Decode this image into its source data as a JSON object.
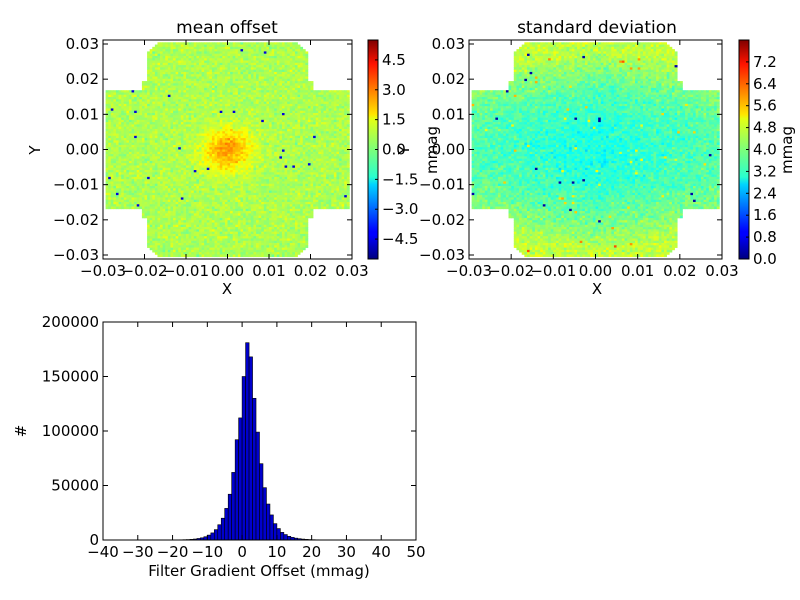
{
  "chart_data": [
    {
      "type": "heatmap",
      "title": "mean offset",
      "xlabel": "X",
      "ylabel": "Y",
      "xlim": [
        -0.031,
        0.031
      ],
      "ylim": [
        -0.031,
        0.031
      ],
      "x_ticks": [
        "−0.03",
        "−0.02",
        "−0.01",
        "0.00",
        "0.01",
        "0.02",
        "0.03"
      ],
      "y_ticks": [
        "0.03",
        "0.02",
        "0.01",
        "0.00",
        "−0.01",
        "−0.02",
        "−0.03"
      ],
      "colorbar": {
        "label": "mmag",
        "range": [
          -5.5,
          5.5
        ],
        "ticks": [
          "4.5",
          "3.0",
          "1.5",
          "0.0",
          "−1.5",
          "−3.0",
          "−4.5"
        ],
        "tick_values": [
          4.5,
          3.0,
          1.5,
          0.0,
          -1.5,
          -3.0,
          -4.5
        ],
        "colormap": "jet"
      },
      "field_base_value": 0.5,
      "center_peak_value": 2.5,
      "grid": false
    },
    {
      "type": "heatmap",
      "title": "standard deviation",
      "xlabel": "X",
      "ylabel": "Y",
      "xlim": [
        -0.031,
        0.031
      ],
      "ylim": [
        -0.031,
        0.031
      ],
      "x_ticks": [
        "−0.03",
        "−0.02",
        "−0.01",
        "0.00",
        "0.01",
        "0.02",
        "0.03"
      ],
      "y_ticks": [
        "0.03",
        "0.02",
        "0.01",
        "0.00",
        "−0.01",
        "−0.02",
        "−0.03"
      ],
      "colorbar": {
        "label": "mmag",
        "range": [
          0,
          8.0
        ],
        "ticks": [
          "7.2",
          "6.4",
          "5.6",
          "4.8",
          "4.0",
          "3.2",
          "2.4",
          "1.6",
          "0.8",
          "0.0"
        ],
        "tick_values": [
          7.2,
          6.4,
          5.6,
          4.8,
          4.0,
          3.2,
          2.4,
          1.6,
          0.8,
          0.0
        ],
        "colormap": "jet"
      },
      "field_center_value": 3.2,
      "field_edge_value": 4.5,
      "grid": false
    },
    {
      "type": "bar",
      "title": "",
      "xlabel": "Filter Gradient Offset (mmag)",
      "ylabel": "#",
      "xlim": [
        -40,
        50
      ],
      "ylim": [
        0,
        200000
      ],
      "x_ticks": [
        "−40",
        "−30",
        "−20",
        "−10",
        "0",
        "10",
        "20",
        "30",
        "40",
        "50"
      ],
      "y_ticks": [
        "200000",
        "150000",
        "100000",
        "50000",
        "0"
      ],
      "bin_width": 1,
      "bin_starts": [
        -20,
        -19,
        -18,
        -17,
        -16,
        -15,
        -14,
        -13,
        -12,
        -11,
        -10,
        -9,
        -8,
        -7,
        -6,
        -5,
        -4,
        -3,
        -2,
        -1,
        0,
        1,
        2,
        3,
        4,
        5,
        6,
        7,
        8,
        9,
        10,
        11,
        12,
        13,
        14,
        15,
        16,
        17,
        18,
        19,
        20,
        21,
        22,
        23,
        24,
        25
      ],
      "counts": [
        100,
        150,
        200,
        300,
        400,
        600,
        900,
        1400,
        2000,
        3000,
        4500,
        6500,
        9500,
        14000,
        20000,
        29000,
        42000,
        62000,
        92000,
        112000,
        150000,
        181000,
        168000,
        130000,
        99000,
        70000,
        48000,
        33000,
        23000,
        15000,
        10500,
        7000,
        5000,
        3400,
        2400,
        1700,
        1200,
        850,
        600,
        420,
        300,
        200,
        150,
        100,
        70,
        50
      ],
      "bar_color": "#0000cc",
      "grid": false
    }
  ]
}
